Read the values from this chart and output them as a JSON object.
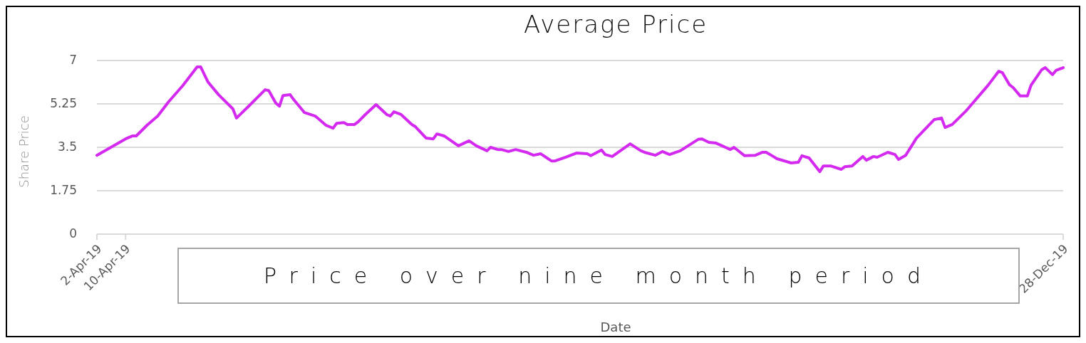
{
  "chart_data": {
    "type": "line",
    "title": "Average Price",
    "xlabel": "Date",
    "ylabel": "Share Price",
    "annotations": [
      "Price over nine month period"
    ],
    "x": [
      "2019-04-02",
      "2019-04-10",
      "2019-04-12",
      "2019-04-13",
      "2019-04-16",
      "2019-04-19",
      "2019-04-22",
      "2019-04-26",
      "2019-04-30",
      "2019-05-01",
      "2019-05-03",
      "2019-05-06",
      "2019-05-10",
      "2019-05-11",
      "2019-05-14",
      "2019-05-19",
      "2019-05-20",
      "2019-05-22",
      "2019-05-23",
      "2019-05-24",
      "2019-05-26",
      "2019-05-27",
      "2019-05-30",
      "2019-06-02",
      "2019-06-05",
      "2019-06-07",
      "2019-06-08",
      "2019-06-10",
      "2019-06-11",
      "2019-06-13",
      "2019-06-14",
      "2019-06-16",
      "2019-06-19",
      "2019-06-22",
      "2019-06-23",
      "2019-06-24",
      "2019-06-26",
      "2019-06-29",
      "2019-06-30",
      "2019-07-03",
      "2019-07-05",
      "2019-07-06",
      "2019-07-08",
      "2019-07-12",
      "2019-07-15",
      "2019-07-17",
      "2019-07-20",
      "2019-07-21",
      "2019-07-23",
      "2019-07-24",
      "2019-07-26",
      "2019-07-28",
      "2019-07-31",
      "2019-08-02",
      "2019-08-04",
      "2019-08-07",
      "2019-08-08",
      "2019-08-11",
      "2019-08-14",
      "2019-08-17",
      "2019-08-18",
      "2019-08-21",
      "2019-08-22",
      "2019-08-24",
      "2019-08-29",
      "2019-09-01",
      "2019-09-02",
      "2019-09-05",
      "2019-09-07",
      "2019-09-09",
      "2019-09-12",
      "2019-09-17",
      "2019-09-18",
      "2019-09-20",
      "2019-09-22",
      "2019-09-26",
      "2019-09-27",
      "2019-09-29",
      "2019-09-30",
      "2019-10-03",
      "2019-10-05",
      "2019-10-06",
      "2019-10-08",
      "2019-10-09",
      "2019-10-13",
      "2019-10-15",
      "2019-10-16",
      "2019-10-18",
      "2019-10-21",
      "2019-10-22",
      "2019-10-24",
      "2019-10-27",
      "2019-10-28",
      "2019-10-30",
      "2019-11-02",
      "2019-11-03",
      "2019-11-05",
      "2019-11-06",
      "2019-11-09",
      "2019-11-11",
      "2019-11-12",
      "2019-11-14",
      "2019-11-17",
      "2019-11-18",
      "2019-11-22",
      "2019-11-24",
      "2019-11-25",
      "2019-11-27",
      "2019-12-01",
      "2019-12-07",
      "2019-12-10",
      "2019-12-11",
      "2019-12-13",
      "2019-12-14",
      "2019-12-16",
      "2019-12-18",
      "2019-12-19",
      "2019-12-22",
      "2019-12-23",
      "2019-12-25",
      "2019-12-26",
      "2019-12-28"
    ],
    "series": [
      {
        "color": "#d42af0",
        "values": [
          3.18,
          3.84,
          3.96,
          3.96,
          4.39,
          4.76,
          5.33,
          5.99,
          6.74,
          6.74,
          6.14,
          5.62,
          5.05,
          4.68,
          5.1,
          5.82,
          5.79,
          5.28,
          5.16,
          5.59,
          5.62,
          5.42,
          4.9,
          4.76,
          4.39,
          4.27,
          4.47,
          4.5,
          4.42,
          4.42,
          4.53,
          4.82,
          5.22,
          4.82,
          4.76,
          4.93,
          4.82,
          4.42,
          4.33,
          3.87,
          3.84,
          4.04,
          3.96,
          3.56,
          3.76,
          3.56,
          3.36,
          3.5,
          3.41,
          3.41,
          3.33,
          3.41,
          3.3,
          3.18,
          3.24,
          2.95,
          2.95,
          3.1,
          3.27,
          3.24,
          3.16,
          3.39,
          3.21,
          3.13,
          3.64,
          3.36,
          3.3,
          3.18,
          3.33,
          3.21,
          3.36,
          3.82,
          3.84,
          3.7,
          3.67,
          3.41,
          3.5,
          3.27,
          3.16,
          3.18,
          3.3,
          3.3,
          3.13,
          3.04,
          2.87,
          2.9,
          3.16,
          3.07,
          2.52,
          2.75,
          2.75,
          2.61,
          2.72,
          2.75,
          3.13,
          2.98,
          3.13,
          3.1,
          3.3,
          3.21,
          3.01,
          3.18,
          3.87,
          4.02,
          4.62,
          4.68,
          4.3,
          4.42,
          4.99,
          6.0,
          6.57,
          6.51,
          6.02,
          5.91,
          5.57,
          5.57,
          6.0,
          6.63,
          6.71,
          6.43,
          6.6,
          6.71
        ]
      }
    ],
    "xlim": [
      "2019-04-02",
      "2019-12-28"
    ],
    "xticks": [
      {
        "value": "2019-04-02",
        "label": "2-Apr-19"
      },
      {
        "value": "2019-04-10",
        "label": "10-Apr-19"
      },
      {
        "value": "2019-12-28",
        "label": "28-Dec-19"
      }
    ],
    "ylim": [
      0,
      7
    ],
    "yticks": [
      0,
      1.75,
      3.5,
      5.25,
      7
    ],
    "grid": "y",
    "marker": "none",
    "line_style": "solid"
  }
}
